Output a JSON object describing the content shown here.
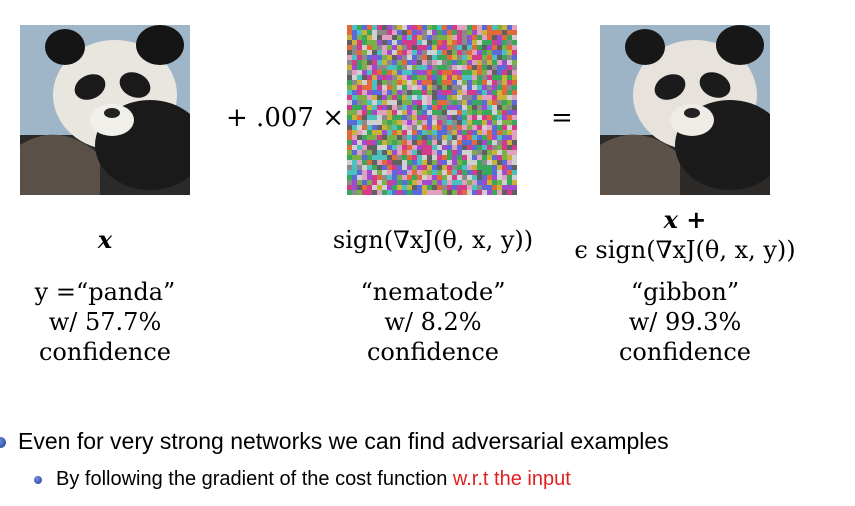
{
  "operators": {
    "plus_coefficient": "+ .007 ×",
    "equals": "="
  },
  "columns": [
    {
      "expression": "x",
      "label_line1": "y =“panda”",
      "label_line2": "w/ 57.7%",
      "label_line3": "confidence"
    },
    {
      "expression": "sign(∇xJ(θ, x, y))",
      "label_line1": "“nematode”",
      "label_line2": "w/ 8.2%",
      "label_line3": "confidence"
    },
    {
      "expression_line1": "x +",
      "expression_line2": "ϵ sign(∇xJ(θ, x, y))",
      "label_line1": "“gibbon”",
      "label_line2": "w/ 99.3%",
      "label_line3": "confidence"
    }
  ],
  "bullets": {
    "main": "Even for very strong networks we can find adversarial examples",
    "sub_prefix": "By following the gradient of the cost function ",
    "sub_highlight": "w.r.t the input"
  },
  "colors": {
    "highlight": "#e02020",
    "bullet": "#2a4fb0"
  },
  "icons": [
    "panda-image",
    "noise-image",
    "bullet-dot-icon"
  ]
}
